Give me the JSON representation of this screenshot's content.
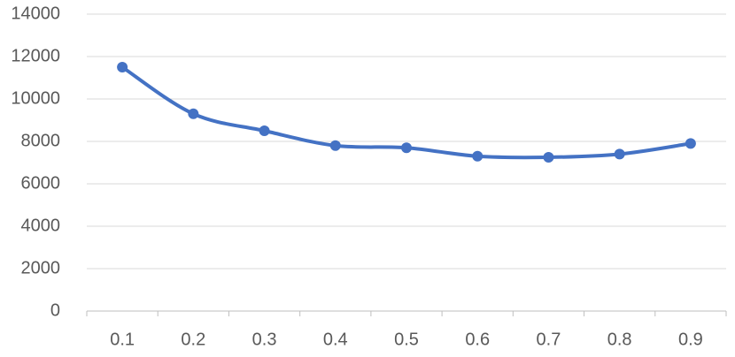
{
  "chart_data": {
    "type": "line",
    "categories": [
      "0.1",
      "0.2",
      "0.3",
      "0.4",
      "0.5",
      "0.6",
      "0.7",
      "0.8",
      "0.9"
    ],
    "series": [
      {
        "color": "#4472c4",
        "values": [
          11500,
          9300,
          8500,
          7800,
          7700,
          7300,
          7250,
          7400,
          7900
        ]
      }
    ],
    "ylim": [
      0,
      14000
    ],
    "yticks": [
      0,
      2000,
      4000,
      6000,
      8000,
      10000,
      12000,
      14000
    ],
    "grid": true,
    "smooth": true
  }
}
